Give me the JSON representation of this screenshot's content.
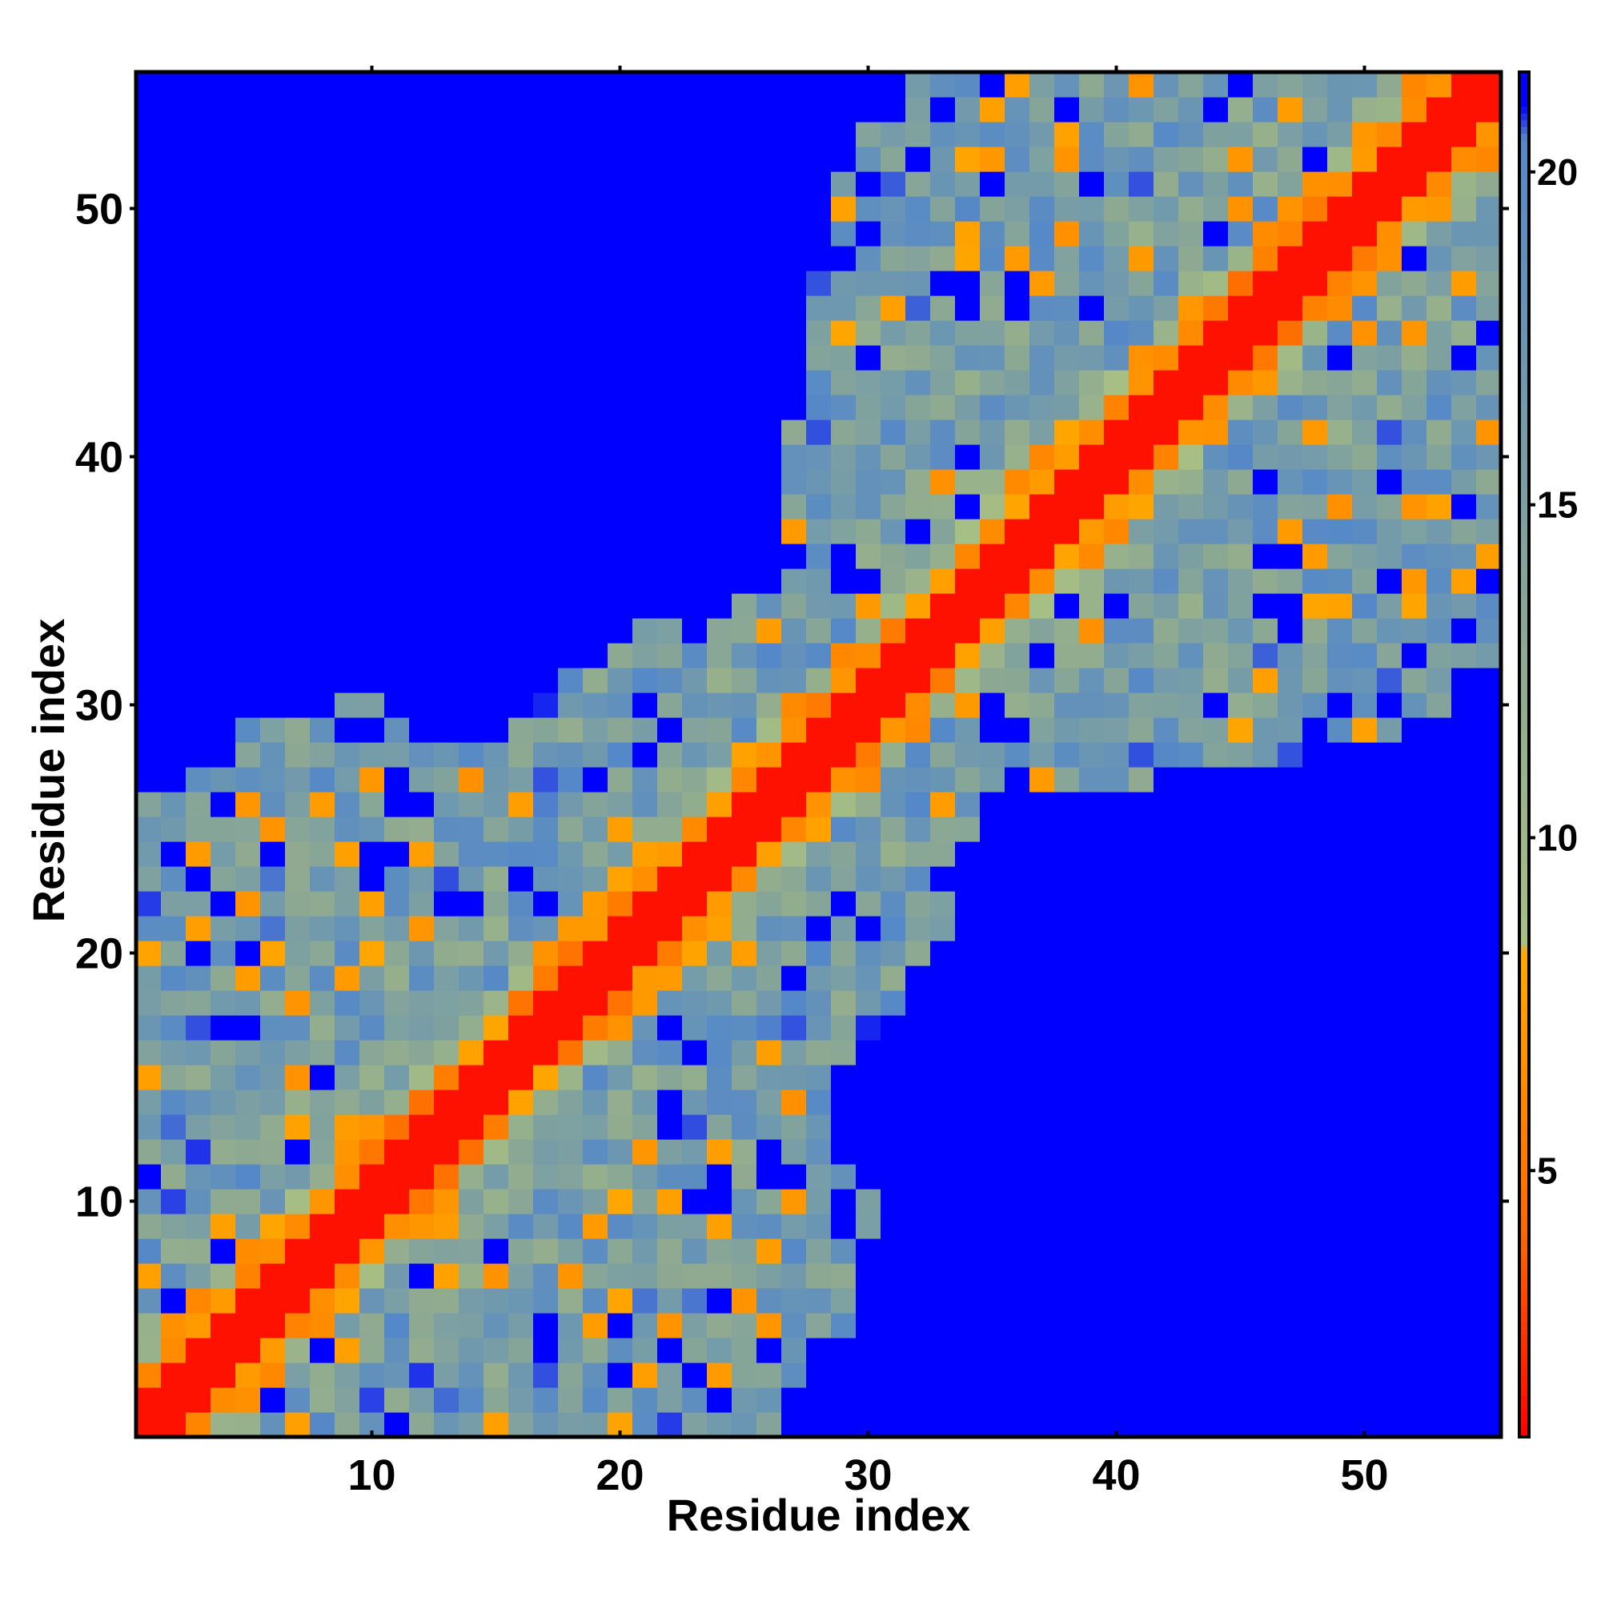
{
  "chart_data": {
    "type": "heatmap",
    "title": "",
    "xlabel": "Residue index",
    "ylabel": "Residue index",
    "xlim": [
      0.5,
      55.5
    ],
    "ylim": [
      0.5,
      55.5
    ],
    "xticks": [
      10,
      20,
      30,
      40,
      50
    ],
    "yticks": [
      10,
      20,
      30,
      40,
      50
    ],
    "grid": false,
    "n_residues": 55,
    "colorbar": {
      "range": [
        1,
        21.5
      ],
      "ticks": [
        5,
        10,
        15,
        20
      ],
      "stops": [
        {
          "value": 1.0,
          "color": "#ff0000"
        },
        {
          "value": 4.0,
          "color": "#ff6600"
        },
        {
          "value": 8.3,
          "color": "#ffaa00"
        },
        {
          "value": 8.4,
          "color": "#a8c083"
        },
        {
          "value": 12.5,
          "color": "#8faa90"
        },
        {
          "value": 17.0,
          "color": "#6e98b0"
        },
        {
          "value": 20.5,
          "color": "#5588c8"
        },
        {
          "value": 21.0,
          "color": "#0000ff"
        }
      ],
      "out_of_range_color": "#0000ff"
    },
    "color_scale_note": "Symmetric residue-residue distance map; cells beyond cutoff are blue; near-diagonal cells red.",
    "contact_band": [
      {
        "residue": 1,
        "min": 1,
        "max": 28
      },
      {
        "residue": 2,
        "min": 1,
        "max": 28
      },
      {
        "residue": 3,
        "min": 1,
        "max": 28
      },
      {
        "residue": 5,
        "min": 1,
        "max": 29
      },
      {
        "residue": 8,
        "min": 1,
        "max": 29
      },
      {
        "residue": 10,
        "min": 1,
        "max": 30
      },
      {
        "residue": 12,
        "min": 1,
        "max": 28
      },
      {
        "residue": 15,
        "min": 1,
        "max": 28
      },
      {
        "residue": 17,
        "min": 1,
        "max": 30
      },
      {
        "residue": 19,
        "min": 1,
        "max": 31
      },
      {
        "residue": 20,
        "min": 1,
        "max": 32
      },
      {
        "residue": 22,
        "min": 1,
        "max": 33
      },
      {
        "residue": 24,
        "min": 1,
        "max": 33
      },
      {
        "residue": 26,
        "min": 1,
        "max": 34
      },
      {
        "residue": 28,
        "min": 5,
        "max": 48
      },
      {
        "residue": 30,
        "min": 5,
        "max": 54
      },
      {
        "residue": 32,
        "min": 7,
        "max": 55
      },
      {
        "residue": 34,
        "min": 23,
        "max": 55
      },
      {
        "residue": 36,
        "min": 28,
        "max": 55
      },
      {
        "residue": 38,
        "min": 23,
        "max": 55
      },
      {
        "residue": 40,
        "min": 19,
        "max": 55
      },
      {
        "residue": 42,
        "min": 19,
        "max": 55
      },
      {
        "residue": 44,
        "min": 21,
        "max": 55
      },
      {
        "residue": 46,
        "min": 20,
        "max": 55
      },
      {
        "residue": 48,
        "min": 23,
        "max": 55
      },
      {
        "residue": 50,
        "min": 25,
        "max": 55
      },
      {
        "residue": 52,
        "min": 29,
        "max": 55
      },
      {
        "residue": 54,
        "min": 31,
        "max": 55
      },
      {
        "residue": 55,
        "min": 32,
        "max": 55
      }
    ]
  }
}
